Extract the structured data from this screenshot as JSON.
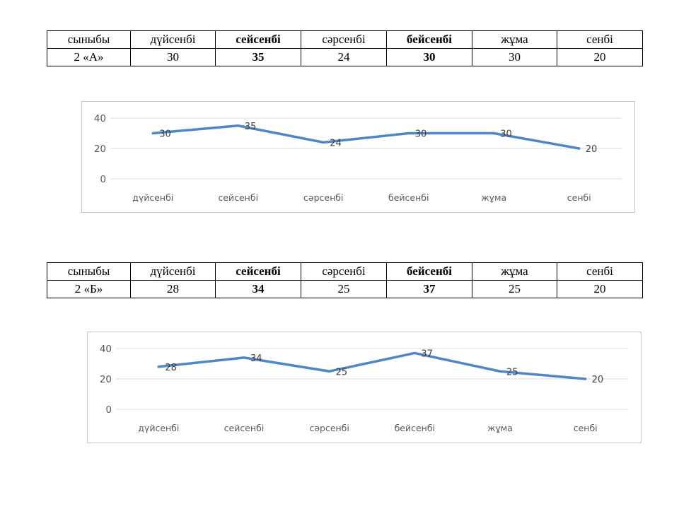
{
  "tables": [
    {
      "headers": [
        "сыныбы",
        "дүйсенбі",
        "сейсенбі",
        "сәрсенбі",
        "бейсенбі",
        "жұма",
        "сенбі"
      ],
      "row": [
        "2 «А»",
        "30",
        "35",
        "24",
        "30",
        "30",
        "20"
      ]
    },
    {
      "headers": [
        "сыныбы",
        "дүйсенбі",
        "сейсенбі",
        "сәрсенбі",
        "бейсенбі",
        "жұма",
        "сенбі"
      ],
      "row": [
        "2 «Б»",
        "28",
        "34",
        "25",
        "37",
        "25",
        "20"
      ]
    }
  ],
  "chart_data": [
    {
      "type": "line",
      "categories": [
        "дүйсенбі",
        "сейсенбі",
        "сәрсенбі",
        "бейсенбі",
        "жұма",
        "сенбі"
      ],
      "values": [
        30,
        35,
        24,
        30,
        30,
        20
      ],
      "data_labels": [
        "30",
        "35",
        "24",
        "30",
        "30",
        "20"
      ],
      "title": "",
      "xlabel": "",
      "ylabel": "",
      "yticks": [
        0,
        20,
        40
      ],
      "ylim": [
        0,
        45
      ],
      "grid": true,
      "legend": "none",
      "line_color": "#4f86c5",
      "gridline_color": "#d9d9d9",
      "tick_label_color": "#595959",
      "data_label_color": "#404040",
      "border_color": "#c6c6c6"
    },
    {
      "type": "line",
      "categories": [
        "дүйсенбі",
        "сейсенбі",
        "сәрсенбі",
        "бейсенбі",
        "жұма",
        "сенбі"
      ],
      "values": [
        28,
        34,
        25,
        37,
        25,
        20
      ],
      "data_labels": [
        "28",
        "34",
        "25",
        "37",
        "25",
        "20"
      ],
      "title": "",
      "xlabel": "",
      "ylabel": "",
      "yticks": [
        0,
        20,
        40
      ],
      "ylim": [
        0,
        45
      ],
      "grid": true,
      "legend": "none",
      "line_color": "#4f86c5",
      "gridline_color": "#d9d9d9",
      "tick_label_color": "#595959",
      "data_label_color": "#404040",
      "border_color": "#c6c6c6"
    }
  ]
}
